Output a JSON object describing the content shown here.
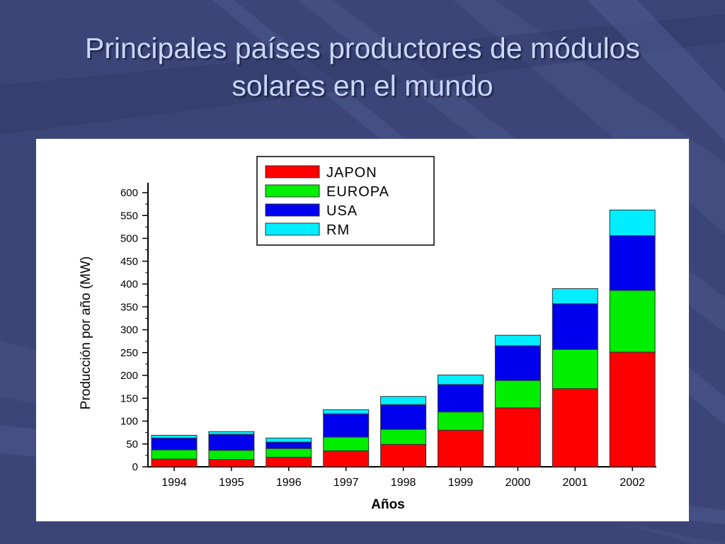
{
  "slide": {
    "title_line1": "Principales países productores  de módulos",
    "title_line2": "solares en el mundo"
  },
  "colors": {
    "background": "#3b4577",
    "title": "#c9d6ff",
    "JAPON": "#ff0000",
    "EUROPA": "#00ee00",
    "USA": "#0000ee",
    "RM": "#00eeff"
  },
  "chart_data": {
    "type": "bar",
    "stacked": true,
    "title": "",
    "xlabel": "Años",
    "ylabel": "Producción por año (MW)",
    "ylim": [
      0,
      600
    ],
    "yticks": [
      "0",
      "50",
      "100",
      "150",
      "200",
      "250",
      "300",
      "350",
      "400",
      "450",
      "500",
      "550",
      "600"
    ],
    "categories": [
      "1994",
      "1995",
      "1996",
      "1997",
      "1998",
      "1999",
      "2000",
      "2001",
      "2002"
    ],
    "series": [
      {
        "name": "JAPON",
        "color": "#ff0000",
        "values": [
          17,
          16,
          21,
          35,
          49,
          80,
          129,
          171,
          251
        ]
      },
      {
        "name": "EUROPA",
        "color": "#00ee00",
        "values": [
          20,
          20,
          19,
          30,
          33,
          40,
          60,
          86,
          135
        ]
      },
      {
        "name": "USA",
        "color": "#0000ee",
        "values": [
          26,
          35,
          14,
          51,
          54,
          60,
          76,
          100,
          120
        ]
      },
      {
        "name": "RM",
        "color": "#00eeff",
        "values": [
          6,
          6,
          9,
          9,
          18,
          21,
          23,
          33,
          56
        ]
      }
    ],
    "legend": {
      "placement": "top-left",
      "entries": [
        "JAPON",
        "EUROPA",
        "USA",
        "RM"
      ]
    },
    "grid": false
  }
}
